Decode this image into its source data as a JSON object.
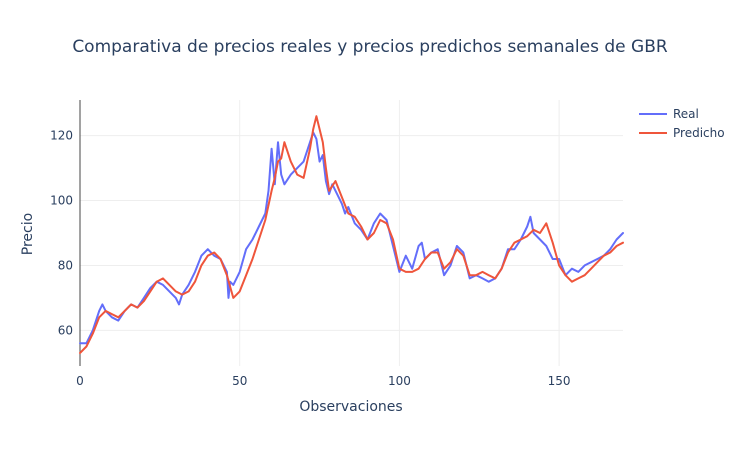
{
  "chart_data": {
    "type": "line",
    "title": "Comparativa de precios reales y precios predichos semanales de GBR",
    "xlabel": "Observaciones",
    "ylabel": "Precio",
    "xlim": [
      0,
      170
    ],
    "ylim": [
      49,
      131
    ],
    "xticks": [
      0,
      50,
      100,
      150
    ],
    "yticks": [
      60,
      80,
      100,
      120
    ],
    "grid": true,
    "legend_position": "top-right",
    "series": [
      {
        "name": "Real",
        "color": "#636efa",
        "x": [
          0,
          2,
          4,
          6,
          7,
          8,
          10,
          12,
          14,
          16,
          18,
          20,
          22,
          24,
          26,
          28,
          30,
          31,
          32,
          34,
          36,
          38,
          40,
          42,
          44,
          46,
          46.5,
          47,
          48,
          50,
          52,
          54,
          56,
          58,
          59,
          60,
          61,
          62,
          63,
          64,
          66,
          68,
          70,
          72,
          73,
          74,
          75,
          76,
          77,
          78,
          79,
          80,
          82,
          83,
          84,
          86,
          88,
          90,
          92,
          94,
          96,
          98,
          100,
          102,
          104,
          106,
          107,
          108,
          110,
          112,
          114,
          116,
          118,
          120,
          122,
          124,
          126,
          128,
          130,
          132,
          134,
          136,
          138,
          140,
          141,
          142,
          144,
          146,
          148,
          150,
          152,
          154,
          156,
          158,
          160,
          162,
          164,
          166,
          168,
          170
        ],
        "values": [
          56,
          56,
          60,
          66,
          68,
          66,
          64,
          63,
          66,
          68,
          67,
          70,
          73,
          75,
          74,
          72,
          70,
          68,
          71,
          74,
          78,
          83,
          85,
          83,
          82,
          78,
          70,
          75,
          74,
          78,
          85,
          88,
          92,
          96,
          103,
          116,
          105,
          118,
          108,
          105,
          108,
          110,
          112,
          118,
          121,
          119,
          112,
          114,
          106,
          102,
          105,
          103,
          99,
          96,
          98,
          93,
          91,
          88,
          93,
          96,
          94,
          86,
          78,
          83,
          79,
          86,
          87,
          82,
          84,
          85,
          77,
          80,
          86,
          84,
          76,
          77,
          76,
          75,
          76,
          79,
          85,
          85,
          88,
          92,
          95,
          90,
          88,
          86,
          82,
          82,
          77,
          79,
          78,
          80,
          81,
          82,
          83,
          85,
          88,
          90
        ]
      },
      {
        "name": "Predicho",
        "color": "#ef553b",
        "x": [
          0,
          2,
          4,
          6,
          8,
          10,
          12,
          14,
          16,
          18,
          20,
          22,
          24,
          26,
          28,
          30,
          32,
          34,
          36,
          38,
          40,
          42,
          44,
          46,
          48,
          50,
          52,
          54,
          56,
          58,
          60,
          61,
          62,
          63,
          64,
          66,
          68,
          70,
          72,
          73,
          74,
          76,
          77,
          78,
          80,
          82,
          84,
          86,
          88,
          90,
          92,
          94,
          96,
          98,
          100,
          102,
          104,
          106,
          108,
          110,
          112,
          114,
          116,
          118,
          120,
          122,
          124,
          126,
          128,
          130,
          132,
          134,
          136,
          138,
          140,
          142,
          144,
          146,
          148,
          150,
          152,
          154,
          156,
          158,
          160,
          162,
          164,
          166,
          168,
          170
        ],
        "values": [
          53,
          55,
          59,
          64,
          66,
          65,
          64,
          66,
          68,
          67,
          69,
          72,
          75,
          76,
          74,
          72,
          71,
          72,
          75,
          80,
          83,
          84,
          82,
          77,
          70,
          72,
          77,
          82,
          88,
          94,
          103,
          107,
          112,
          113,
          118,
          112,
          108,
          107,
          116,
          122,
          126,
          118,
          110,
          103,
          106,
          101,
          96,
          95,
          92,
          88,
          90,
          94,
          93,
          88,
          79,
          78,
          78,
          79,
          82,
          84,
          84,
          79,
          81,
          85,
          83,
          77,
          77,
          78,
          77,
          76,
          79,
          84,
          87,
          88,
          89,
          91,
          90,
          93,
          87,
          80,
          77,
          75,
          76,
          77,
          79,
          81,
          83,
          84,
          86,
          87
        ]
      }
    ]
  }
}
